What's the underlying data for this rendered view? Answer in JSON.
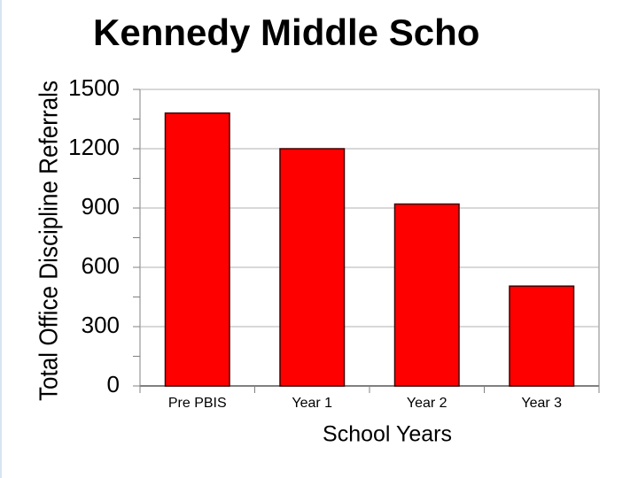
{
  "chart_data": {
    "type": "bar",
    "title": "Kennedy Middle Scho",
    "x_label": "School Years",
    "y_label": "Total Office Discipline Referrals",
    "categories": [
      "Pre PBIS",
      "Year 1",
      "Year 2",
      "Year 3"
    ],
    "values": [
      1380,
      1200,
      920,
      505
    ],
    "color": "#ff0000",
    "ylim": [
      0,
      1500
    ],
    "yticks": [
      0,
      300,
      600,
      900,
      1200,
      1500
    ],
    "grid": true
  }
}
